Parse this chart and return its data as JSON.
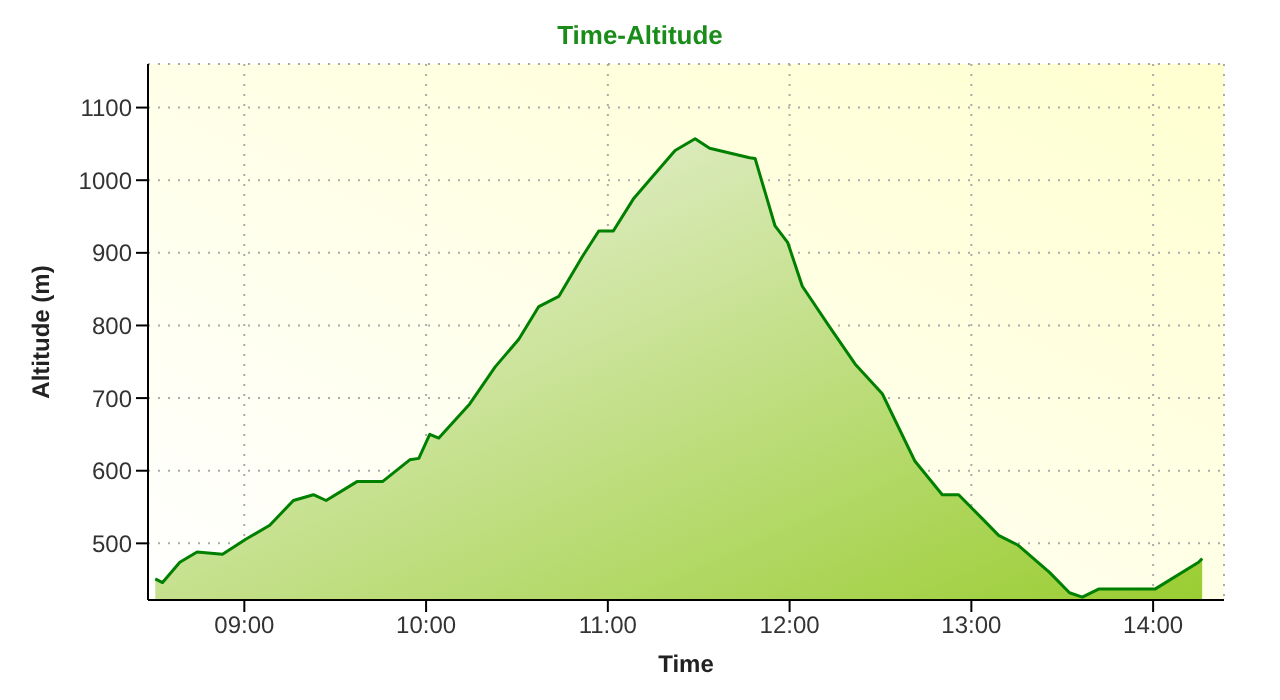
{
  "chart_data": {
    "type": "area",
    "title": "Time-Altitude",
    "xlabel": "Time",
    "ylabel": "Altitude (m)",
    "x": [
      8.51,
      8.55,
      8.645,
      8.74,
      8.88,
      9.01,
      9.14,
      9.27,
      9.38,
      9.45,
      9.62,
      9.76,
      9.91,
      9.96,
      10.02,
      10.07,
      10.24,
      10.38,
      10.51,
      10.62,
      10.73,
      10.86,
      10.95,
      11.03,
      11.14,
      11.25,
      11.37,
      11.48,
      11.56,
      11.78,
      11.81,
      11.92,
      11.99,
      12.07,
      12.22,
      12.36,
      12.51,
      12.69,
      12.84,
      12.93,
      13.06,
      13.15,
      13.26,
      13.43,
      13.54,
      13.61,
      13.7,
      14.01,
      14.25,
      14.27
    ],
    "series": [
      {
        "color": "#008000",
        "values": [
          451,
          446,
          474,
          488,
          485,
          506,
          525,
          559,
          567,
          559,
          585,
          585,
          615,
          617,
          650,
          645,
          692,
          743,
          781,
          826,
          840,
          895,
          930,
          930,
          974,
          1006,
          1041,
          1057,
          1044,
          1031,
          1030,
          937,
          914,
          854,
          798,
          747,
          706,
          613,
          567,
          567,
          534,
          511,
          497,
          460,
          432,
          426,
          437,
          437,
          474,
          479
        ]
      }
    ],
    "xlim": [
      8.47,
      14.39
    ],
    "xticks": [
      {
        "value": 9,
        "label": "09:00"
      },
      {
        "value": 10,
        "label": "10:00"
      },
      {
        "value": 11,
        "label": "11:00"
      },
      {
        "value": 12,
        "label": "12:00"
      },
      {
        "value": 13,
        "label": "13:00"
      },
      {
        "value": 14,
        "label": "14:00"
      }
    ],
    "ylim": [
      422,
      1160
    ],
    "yticks": [
      500,
      600,
      700,
      800,
      900,
      1000,
      1100
    ],
    "grid": true,
    "legend": false
  }
}
